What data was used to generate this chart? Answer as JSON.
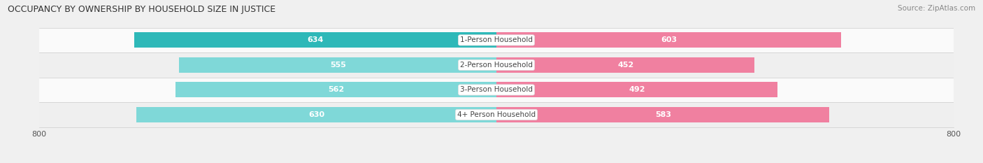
{
  "title": "OCCUPANCY BY OWNERSHIP BY HOUSEHOLD SIZE IN JUSTICE",
  "source": "Source: ZipAtlas.com",
  "categories": [
    "1-Person Household",
    "2-Person Household",
    "3-Person Household",
    "4+ Person Household"
  ],
  "owner_values": [
    634,
    555,
    562,
    630
  ],
  "renter_values": [
    603,
    452,
    492,
    583
  ],
  "owner_color_dark": "#2eb8b8",
  "owner_color_light": "#7fd8d8",
  "renter_color": "#f080a0",
  "renter_color_light": "#f8b0c8",
  "axis_max": 800,
  "background_color": "#f0f0f0",
  "row_colors": [
    "#fafafa",
    "#efefef",
    "#fafafa",
    "#efefef"
  ],
  "title_fontsize": 9,
  "source_fontsize": 7.5,
  "tick_fontsize": 8,
  "value_fontsize": 8,
  "cat_fontsize": 7.5,
  "bar_height": 0.62
}
